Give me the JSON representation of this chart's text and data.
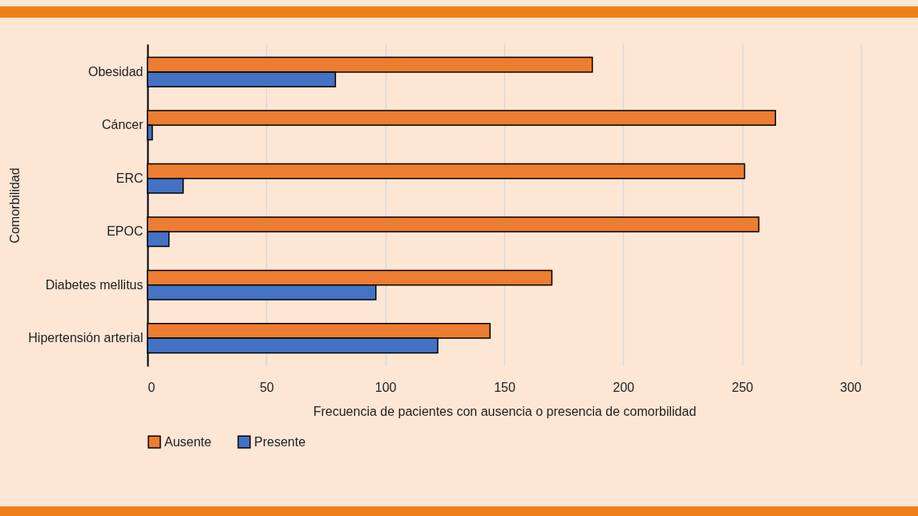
{
  "chart_data": {
    "type": "bar",
    "orientation": "horizontal",
    "xlabel": "Frecuencia de pacientes con ausencia o presencia de comorbilidad",
    "ylabel": "Comorbilidad",
    "categories": [
      "Obesidad",
      "Cáncer",
      "ERC",
      "EPOC",
      "Diabetes mellitus",
      "Hipertensión arterial"
    ],
    "series": [
      {
        "name": "Ausente",
        "color": "#ed7d31",
        "values": [
          187,
          264,
          251,
          257,
          170,
          144
        ]
      },
      {
        "name": "Presente",
        "color": "#4472c4",
        "values": [
          79,
          2,
          15,
          9,
          96,
          122
        ]
      }
    ],
    "xlim": [
      0,
      300
    ],
    "xticks": [
      0,
      50,
      100,
      150,
      200,
      250,
      300
    ],
    "grid": "x",
    "legend": "bottom"
  }
}
